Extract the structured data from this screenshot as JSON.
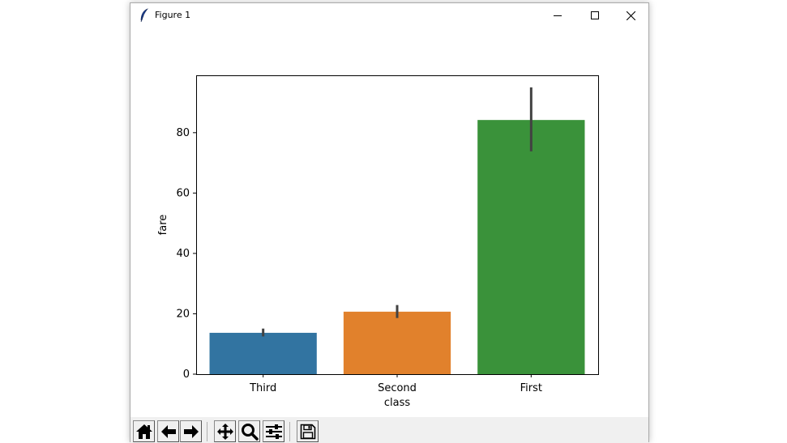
{
  "window": {
    "title": "Figure 1",
    "controls": [
      "minimize-icon",
      "maximize-icon",
      "close-icon"
    ]
  },
  "toolbar": {
    "buttons": [
      {
        "name": "home-button",
        "icon": "home-icon"
      },
      {
        "name": "back-button",
        "icon": "arrow-left-icon"
      },
      {
        "name": "forward-button",
        "icon": "arrow-right-icon"
      },
      {
        "name": "pan-button",
        "icon": "move-icon"
      },
      {
        "name": "zoom-button",
        "icon": "magnifier-icon"
      },
      {
        "name": "configure-subplots-button",
        "icon": "sliders-icon"
      },
      {
        "name": "save-button",
        "icon": "floppy-disk-icon"
      }
    ]
  },
  "chart_data": {
    "type": "bar",
    "categories": [
      "Third",
      "Second",
      "First"
    ],
    "values": [
      13.7,
      20.7,
      84.2
    ],
    "error_bars": [
      [
        12.5,
        15.1
      ],
      [
        18.6,
        22.9
      ],
      [
        73.8,
        95.0
      ]
    ],
    "colors": [
      "#3274a1",
      "#e1812c",
      "#3a923a"
    ],
    "error_color": "#424242",
    "title": "",
    "xlabel": "class",
    "ylabel": "fare",
    "ylim": [
      0,
      99
    ],
    "yticks": [
      0,
      20,
      40,
      60,
      80
    ],
    "grid": false,
    "legend": "none"
  }
}
